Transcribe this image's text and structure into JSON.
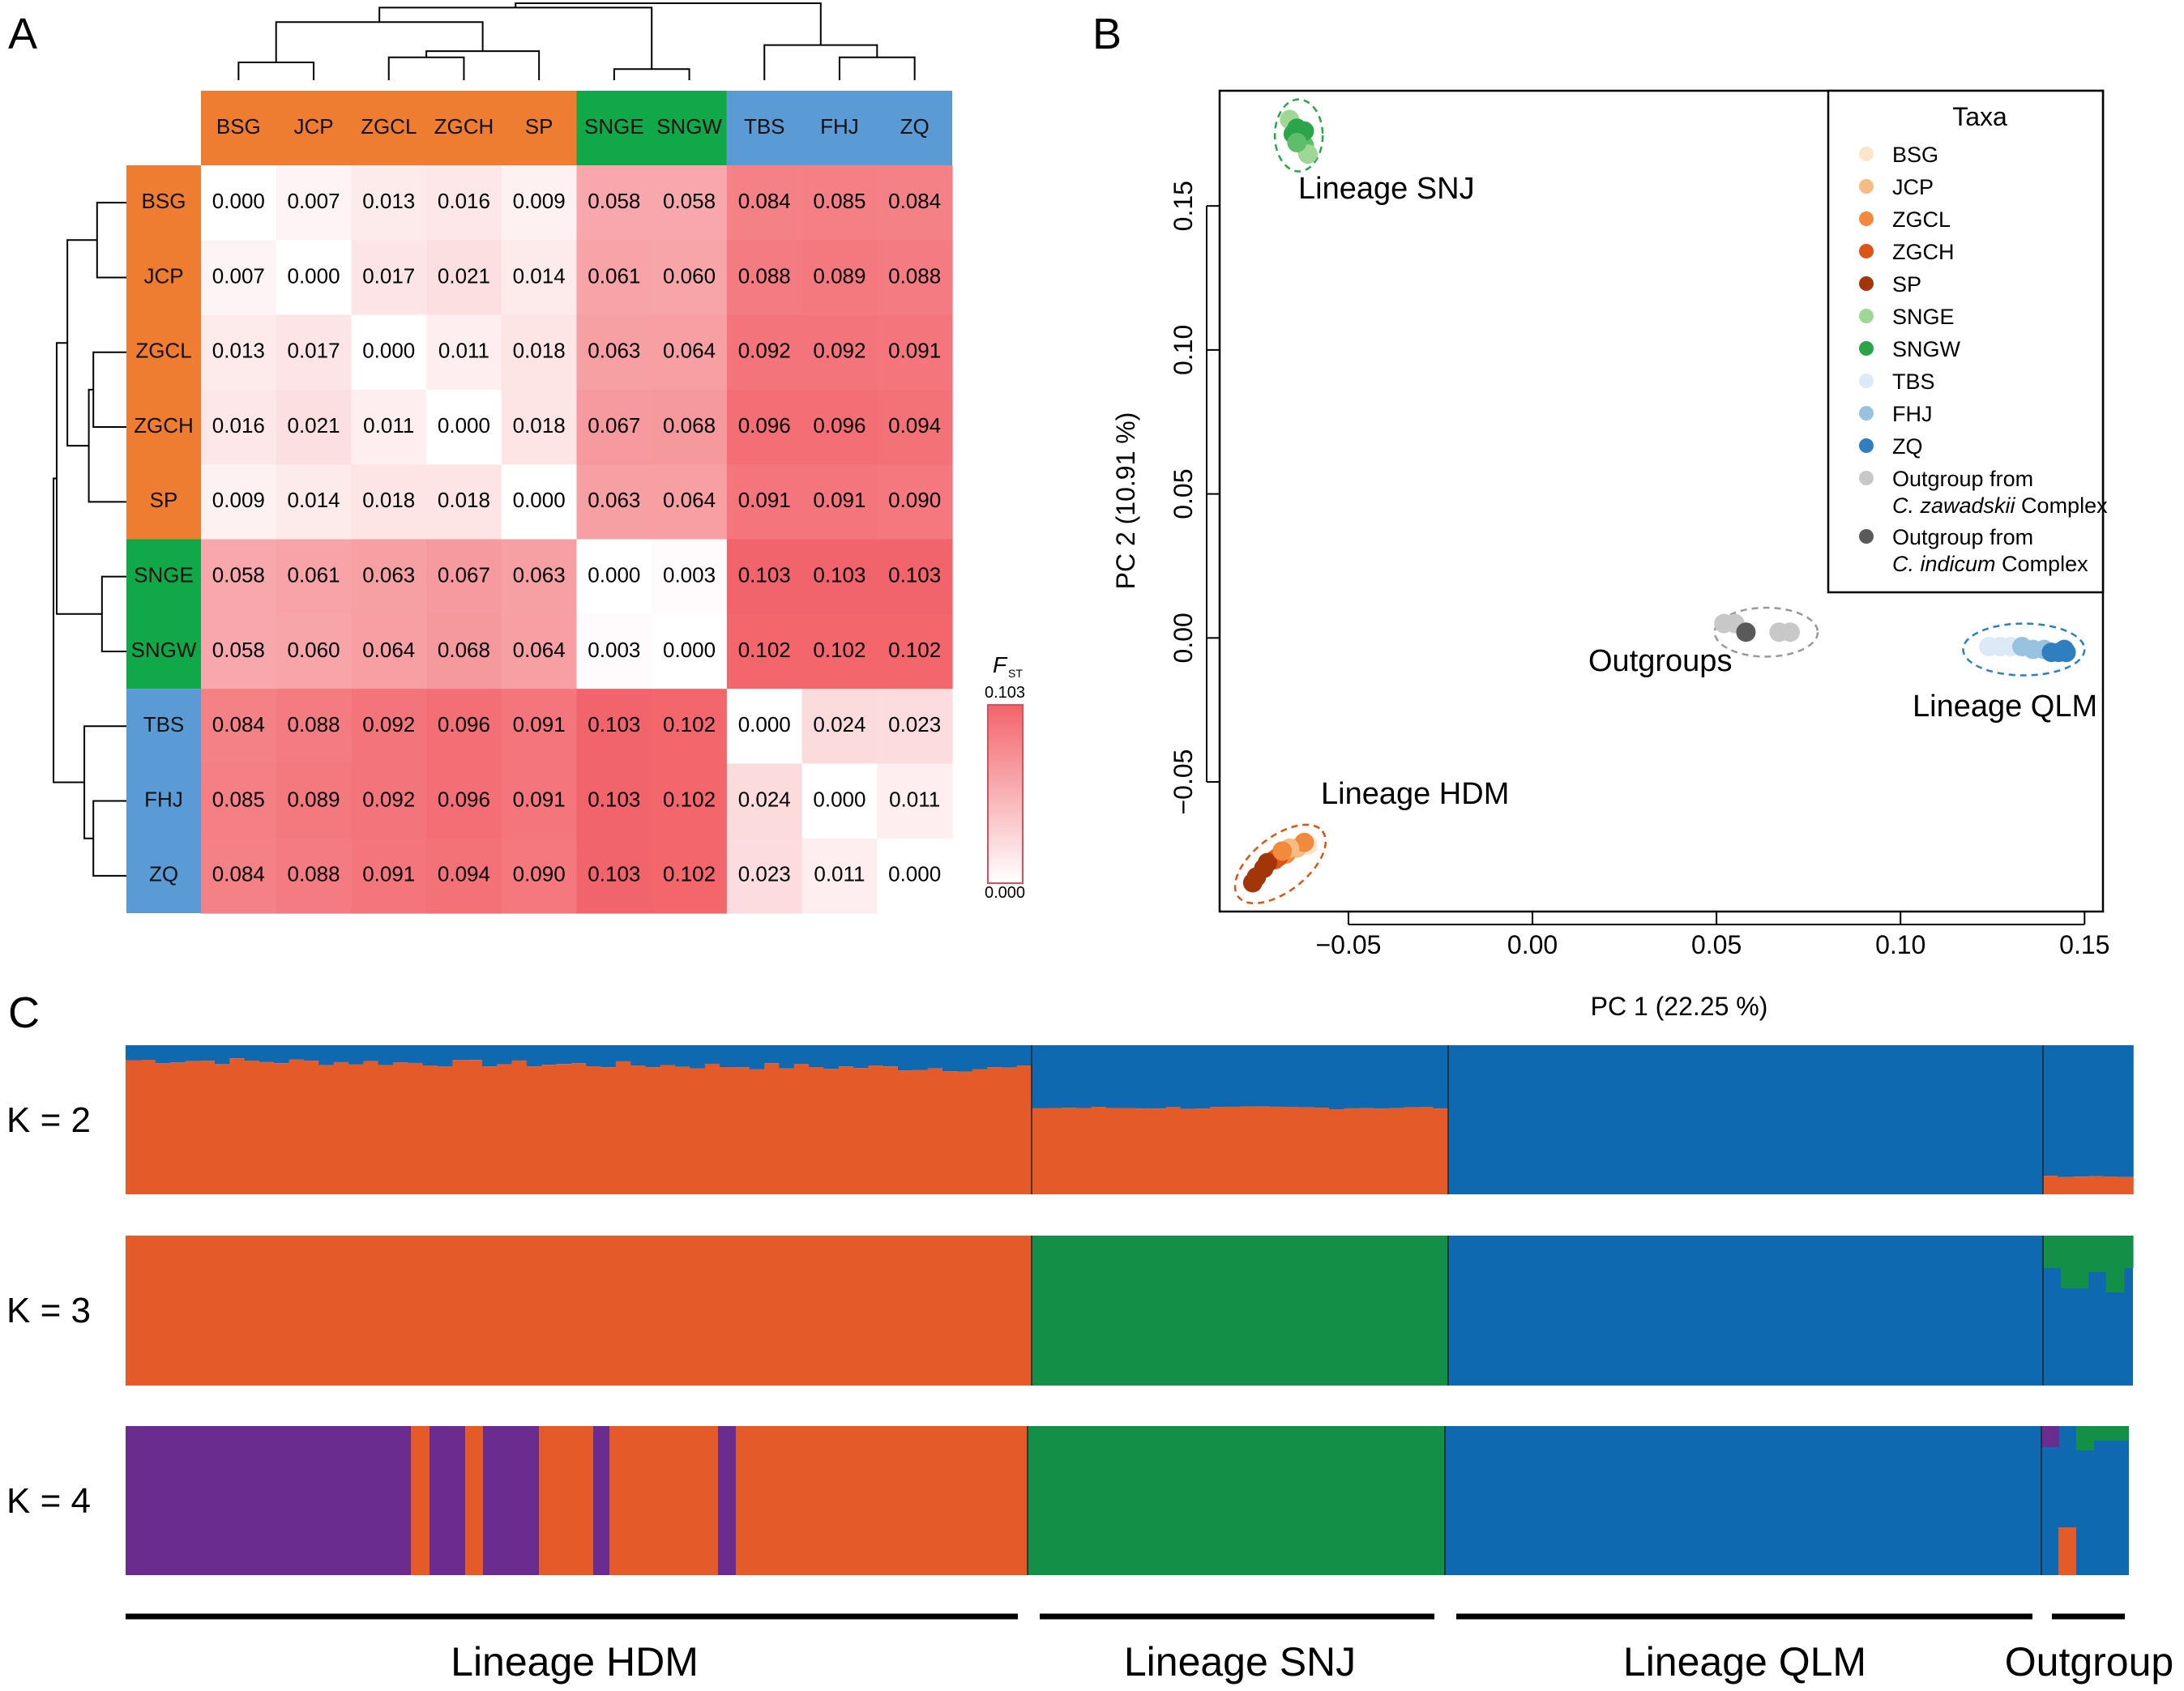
{
  "panels": {
    "a": "A",
    "b": "B",
    "c": "C"
  },
  "chart_data": [
    {
      "type": "heatmap",
      "id": "fst",
      "metric_label": "F",
      "metric_sub": "ST",
      "scale_max_label": "0.103",
      "scale_min_label": "0.000",
      "taxa": [
        "BSG",
        "JCP",
        "ZGCL",
        "ZGCH",
        "SP",
        "SNGE",
        "SNGW",
        "TBS",
        "FHJ",
        "ZQ"
      ],
      "groups": [
        "HDM",
        "HDM",
        "HDM",
        "HDM",
        "HDM",
        "SNJ",
        "SNJ",
        "QLM",
        "QLM",
        "QLM"
      ],
      "group_colors": {
        "HDM": "#ee7d31",
        "SNJ": "#11a84a",
        "QLM": "#5b9bd5"
      },
      "matrix": [
        [
          "0.000",
          "0.007",
          "0.013",
          "0.016",
          "0.009",
          "0.058",
          "0.058",
          "0.084",
          "0.085",
          "0.084"
        ],
        [
          "0.007",
          "0.000",
          "0.017",
          "0.021",
          "0.014",
          "0.061",
          "0.060",
          "0.088",
          "0.089",
          "0.088"
        ],
        [
          "0.013",
          "0.017",
          "0.000",
          "0.011",
          "0.018",
          "0.063",
          "0.064",
          "0.092",
          "0.092",
          "0.091"
        ],
        [
          "0.016",
          "0.021",
          "0.011",
          "0.000",
          "0.018",
          "0.067",
          "0.068",
          "0.096",
          "0.096",
          "0.094"
        ],
        [
          "0.009",
          "0.014",
          "0.018",
          "0.018",
          "0.000",
          "0.063",
          "0.064",
          "0.091",
          "0.091",
          "0.090"
        ],
        [
          "0.058",
          "0.061",
          "0.063",
          "0.067",
          "0.063",
          "0.000",
          "0.003",
          "0.103",
          "0.103",
          "0.103"
        ],
        [
          "0.058",
          "0.060",
          "0.064",
          "0.068",
          "0.064",
          "0.003",
          "0.000",
          "0.102",
          "0.102",
          "0.102"
        ],
        [
          "0.084",
          "0.088",
          "0.092",
          "0.096",
          "0.091",
          "0.103",
          "0.102",
          "0.000",
          "0.024",
          "0.023"
        ],
        [
          "0.085",
          "0.089",
          "0.092",
          "0.096",
          "0.091",
          "0.103",
          "0.102",
          "0.024",
          "0.000",
          "0.011"
        ],
        [
          "0.084",
          "0.088",
          "0.091",
          "0.094",
          "0.090",
          "0.103",
          "0.102",
          "0.023",
          "0.011",
          "0.000"
        ]
      ],
      "dendrogram_merges": [
        [
          0,
          1,
          0.007
        ],
        [
          2,
          3,
          0.011
        ],
        [
          11,
          4,
          0.017
        ],
        [
          10,
          12,
          0.06
        ],
        [
          5,
          6,
          0.003
        ],
        [
          13,
          14,
          0.09
        ],
        [
          8,
          9,
          0.011
        ],
        [
          7,
          16,
          0.024
        ],
        [
          15,
          17,
          0.1
        ]
      ]
    },
    {
      "type": "scatter",
      "id": "pca",
      "xlabel": "PC 1 (22.25 %)",
      "ylabel": "PC 2 (10.91 %)",
      "xlim": [
        -0.085,
        0.155
      ],
      "ylim": [
        -0.095,
        0.19
      ],
      "xticks": [
        -0.05,
        0.0,
        0.05,
        0.1,
        0.15
      ],
      "xtick_labels": [
        "−0.05",
        "0.00",
        "0.05",
        "0.10",
        "0.15"
      ],
      "yticks": [
        -0.05,
        0.0,
        0.05,
        0.1,
        0.15
      ],
      "ytick_labels": [
        "−0.05",
        "0.00",
        "0.05",
        "0.10",
        "0.15"
      ],
      "legend_title": "Taxa",
      "legend": [
        {
          "label": "BSG",
          "color": "#fde5cc"
        },
        {
          "label": "JCP",
          "color": "#f7bb84"
        },
        {
          "label": "ZGCL",
          "color": "#f28a3e"
        },
        {
          "label": "ZGCH",
          "color": "#dd5516"
        },
        {
          "label": "SP",
          "color": "#a33608"
        },
        {
          "label": "SNGE",
          "color": "#9fd896"
        },
        {
          "label": "SNGW",
          "color": "#2ca449"
        },
        {
          "label": "TBS",
          "color": "#dce9f6"
        },
        {
          "label": "FHJ",
          "color": "#97c3e1"
        },
        {
          "label": "ZQ",
          "color": "#2f7fc0"
        },
        {
          "label": "Outgroup from",
          "label_italic": "C. zawadskii",
          "label_tail": " Complex",
          "color": "#c8c8c8"
        },
        {
          "label": "Outgroup from",
          "label_italic": "C. indicum",
          "label_tail": " Complex",
          "color": "#5a5a5a"
        }
      ],
      "clusters": [
        {
          "label": "Lineage SNJ",
          "cx": -0.0635,
          "cy": 0.1745,
          "rx": 0.0065,
          "ry": 0.0125,
          "angle": 0,
          "color": "#2ca449",
          "points": [
            [
              -0.066,
              0.18
            ],
            [
              -0.064,
              0.177
            ],
            [
              -0.063,
              0.174
            ],
            [
              -0.062,
              0.171
            ],
            [
              -0.061,
              0.168
            ],
            [
              -0.065,
              0.175
            ],
            [
              -0.062,
              0.176
            ],
            [
              -0.064,
              0.172
            ]
          ]
        },
        {
          "label": "Outgroups",
          "cx": 0.0635,
          "cy": 0.002,
          "rx": 0.014,
          "ry": 0.0085,
          "angle": 0,
          "color": "#999999",
          "points": [
            [
              0.052,
              0.005
            ],
            [
              0.055,
              0.005
            ],
            [
              0.058,
              0.002
            ],
            [
              0.067,
              0.002
            ],
            [
              0.07,
              0.002
            ]
          ]
        },
        {
          "label": "Lineage QLM",
          "cx": 0.1335,
          "cy": -0.004,
          "rx": 0.0165,
          "ry": 0.009,
          "angle": 0,
          "color": "#2f7fc0",
          "points": [
            [
              0.124,
              -0.003
            ],
            [
              0.127,
              -0.003
            ],
            [
              0.13,
              -0.003
            ],
            [
              0.133,
              -0.003
            ],
            [
              0.136,
              -0.004
            ],
            [
              0.139,
              -0.004
            ],
            [
              0.141,
              -0.005
            ],
            [
              0.143,
              -0.005
            ],
            [
              0.145,
              -0.005
            ],
            [
              0.1445,
              -0.004
            ]
          ]
        },
        {
          "label": "Lineage HDM",
          "cx": -0.0685,
          "cy": -0.0785,
          "rx": 0.0145,
          "ry": 0.0095,
          "angle": -38,
          "color": "#dd5516",
          "points": [
            [
              -0.061,
              -0.072
            ],
            [
              -0.064,
              -0.073
            ],
            [
              -0.067,
              -0.075
            ],
            [
              -0.07,
              -0.077
            ],
            [
              -0.073,
              -0.08
            ],
            [
              -0.075,
              -0.083
            ],
            [
              -0.076,
              -0.085
            ],
            [
              -0.062,
              -0.071
            ],
            [
              -0.066,
              -0.073
            ],
            [
              -0.069,
              -0.076
            ],
            [
              -0.072,
              -0.078
            ],
            [
              -0.068,
              -0.074
            ]
          ]
        }
      ]
    },
    {
      "type": "bar",
      "id": "structure",
      "stacked": true,
      "rows": [
        {
          "label": "K = 2",
          "colors": [
            "#e45a29",
            "#0e69b1"
          ],
          "segments": [
            {
              "group": "HDM",
              "n": 61,
              "orange_base": 0.91,
              "variation": 0.05
            },
            {
              "group": "SNJ",
              "n": 28,
              "orange_base": 0.57,
              "variation": 0.02
            },
            {
              "group": "QLM",
              "n": 40,
              "orange_base": 0.0,
              "variation": 0.0
            },
            {
              "group": "Outgroup",
              "n": 6,
              "orange_base": 0.12,
              "variation": 0.01
            }
          ]
        },
        {
          "label": "K = 3"
        },
        {
          "label": "K = 4"
        }
      ],
      "group_labels": [
        "Lineage HDM",
        "Lineage SNJ",
        "Lineage QLM",
        "Outgroup"
      ]
    }
  ]
}
